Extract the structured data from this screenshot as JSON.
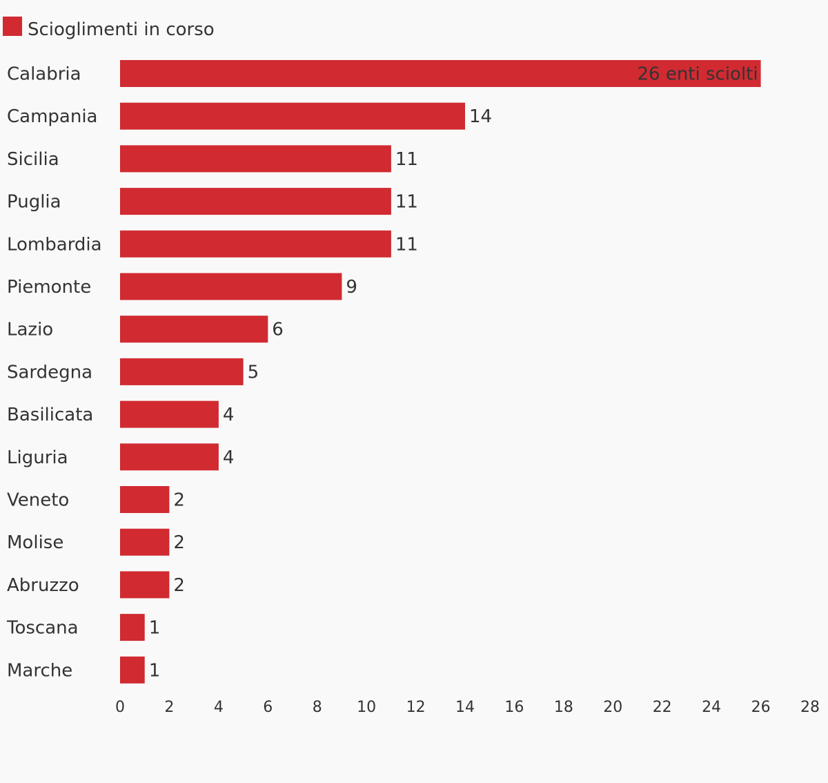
{
  "colors": {
    "bar": "#d12a31",
    "background": "#f9f9f9",
    "text": "#333333"
  },
  "chart_data": {
    "type": "bar",
    "orientation": "horizontal",
    "title": "",
    "xlabel": "",
    "ylabel": "",
    "legend": {
      "position": "top-left",
      "entries": [
        "Scioglimenti in corso"
      ]
    },
    "categories": [
      "Calabria",
      "Campania",
      "Sicilia",
      "Puglia",
      "Lombardia",
      "Piemonte",
      "Lazio",
      "Sardegna",
      "Basilicata",
      "Liguria",
      "Veneto",
      "Molise",
      "Abruzzo",
      "Toscana",
      "Marche"
    ],
    "series": [
      {
        "name": "Scioglimenti in corso",
        "values": [
          26,
          14,
          11,
          11,
          11,
          9,
          6,
          5,
          4,
          4,
          2,
          2,
          2,
          1,
          1
        ]
      }
    ],
    "data_labels": [
      "26 enti sciolti",
      "14",
      "11",
      "11",
      "11",
      "9",
      "6",
      "5",
      "4",
      "4",
      "2",
      "2",
      "2",
      "1",
      "1"
    ],
    "xlim": [
      0,
      28
    ],
    "xticks": [
      0,
      2,
      4,
      6,
      8,
      10,
      12,
      14,
      16,
      18,
      20,
      22,
      24,
      26,
      28
    ],
    "grid": false
  }
}
